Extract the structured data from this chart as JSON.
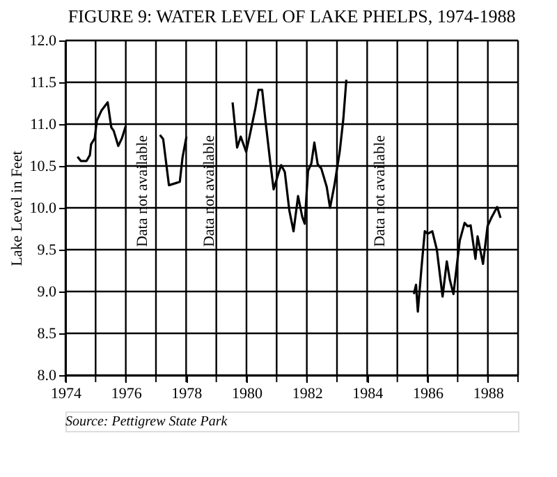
{
  "chart_data": {
    "type": "line",
    "title": "FIGURE 9: WATER LEVEL OF LAKE PHELPS, 1974-1988",
    "ylabel": "Lake Level in Feet",
    "x": [
      1974.4,
      1974.51,
      1974.7,
      1974.81,
      1974.85,
      1974.97,
      1975.04,
      1975.19,
      1975.4,
      1975.52,
      1975.6,
      1975.75,
      1975.87,
      1976.0,
      null,
      1977.13,
      1977.24,
      1977.43,
      1977.79,
      1977.88,
      1978.01,
      null,
      1979.54,
      1979.69,
      1979.81,
      1979.99,
      1980.1,
      1980.29,
      1980.4,
      1980.52,
      1980.63,
      1980.79,
      1980.9,
      1981.05,
      1981.15,
      1981.27,
      1981.42,
      1981.56,
      1981.71,
      1981.85,
      1981.93,
      1982.04,
      1982.15,
      1982.25,
      1982.36,
      1982.48,
      1982.66,
      1982.77,
      1982.92,
      1983.09,
      1983.21,
      1983.31,
      null,
      1985.55,
      1985.62,
      1985.68,
      1985.8,
      1985.91,
      1986.01,
      1986.16,
      1986.31,
      1986.5,
      1986.64,
      1986.74,
      1986.86,
      1987.07,
      1987.23,
      1987.33,
      1987.43,
      1987.59,
      1987.66,
      1987.84,
      1987.99,
      1988.13,
      1988.31,
      1988.42
    ],
    "series": [
      {
        "color": "#000000",
        "values": [
          10.61,
          10.56,
          10.56,
          10.63,
          10.76,
          10.83,
          11.04,
          11.16,
          11.26,
          10.96,
          10.92,
          10.74,
          10.83,
          10.98,
          null,
          10.87,
          10.82,
          10.27,
          10.31,
          10.6,
          10.85,
          null,
          11.26,
          10.72,
          10.85,
          10.67,
          10.85,
          11.18,
          11.41,
          11.41,
          11.04,
          10.54,
          10.22,
          10.4,
          10.51,
          10.43,
          9.97,
          9.72,
          10.14,
          9.89,
          9.81,
          10.44,
          10.53,
          10.78,
          10.52,
          10.47,
          10.25,
          10.0,
          10.28,
          10.67,
          11.06,
          11.53,
          null,
          8.97,
          9.08,
          8.76,
          9.28,
          9.72,
          9.69,
          9.72,
          9.5,
          8.94,
          9.36,
          9.14,
          8.97,
          9.61,
          9.82,
          9.78,
          9.79,
          9.39,
          9.66,
          9.33,
          9.78,
          9.89,
          10.01,
          9.88
        ]
      }
    ],
    "xlim": [
      1974,
      1989
    ],
    "xticks": [
      1974,
      {
        "value": 1975,
        "label": null
      },
      1976,
      {
        "value": 1977,
        "label": null
      },
      1978,
      {
        "value": 1979,
        "label": null
      },
      1980,
      {
        "value": 1981,
        "label": null
      },
      1982,
      {
        "value": 1983,
        "label": null
      },
      1984,
      {
        "value": 1985,
        "label": null
      },
      1986,
      {
        "value": 1987,
        "label": null
      },
      1988,
      {
        "value": 1989,
        "label": null
      }
    ],
    "ylim": [
      8.0,
      12.0
    ],
    "yticks": [
      {
        "value": 8,
        "label": "8.0"
      },
      8.5,
      {
        "value": 9,
        "label": "9.0"
      },
      9.5,
      {
        "value": 10,
        "label": "10.0"
      },
      10.5,
      {
        "value": 11,
        "label": "11.0"
      },
      11.5,
      {
        "value": 12,
        "label": "12.0"
      }
    ],
    "grid": true,
    "marker": "none",
    "line_style": "solid",
    "annotations": [
      "Data not available",
      "Data not available",
      "Data not available",
      "Source: Pettigrew State Park"
    ]
  }
}
